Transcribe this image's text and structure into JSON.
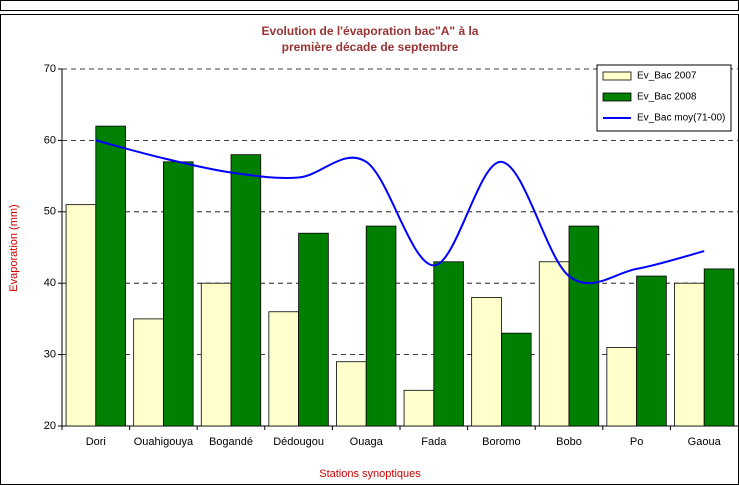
{
  "chart_data": {
    "type": "bar",
    "title": [
      "Evolution de l'évaporation bac\"A\" à la",
      "première décade de septembre"
    ],
    "x_label": "Stations synoptiques",
    "y_label": "Evaporation (mm)",
    "categories": [
      "Dori",
      "Ouahigouya",
      "Bogandé",
      "Dédougou",
      "Ouaga",
      "Fada",
      "Boromo",
      "Bobo",
      "Po",
      "Gaoua"
    ],
    "series": [
      {
        "name": "Ev_Bac 2007",
        "color": "#ffffcc",
        "values": [
          51,
          35,
          40,
          36,
          29,
          25,
          38,
          43,
          31,
          40
        ]
      },
      {
        "name": "Ev_Bac 2008",
        "color": "#008000",
        "values": [
          62,
          57,
          58,
          47,
          48,
          43,
          33,
          48,
          41,
          42
        ]
      },
      {
        "name": "Ev_Bac moy(71-00)",
        "color": "#0000ff",
        "type": "line",
        "values": [
          60,
          57.5,
          55.5,
          54.8,
          57,
          42.5,
          57,
          41,
          42,
          44.5
        ]
      }
    ],
    "ylim": [
      20,
      70
    ],
    "yticks": [
      20,
      30,
      40,
      50,
      60,
      70
    ],
    "grid": true,
    "legend": "upper right"
  }
}
